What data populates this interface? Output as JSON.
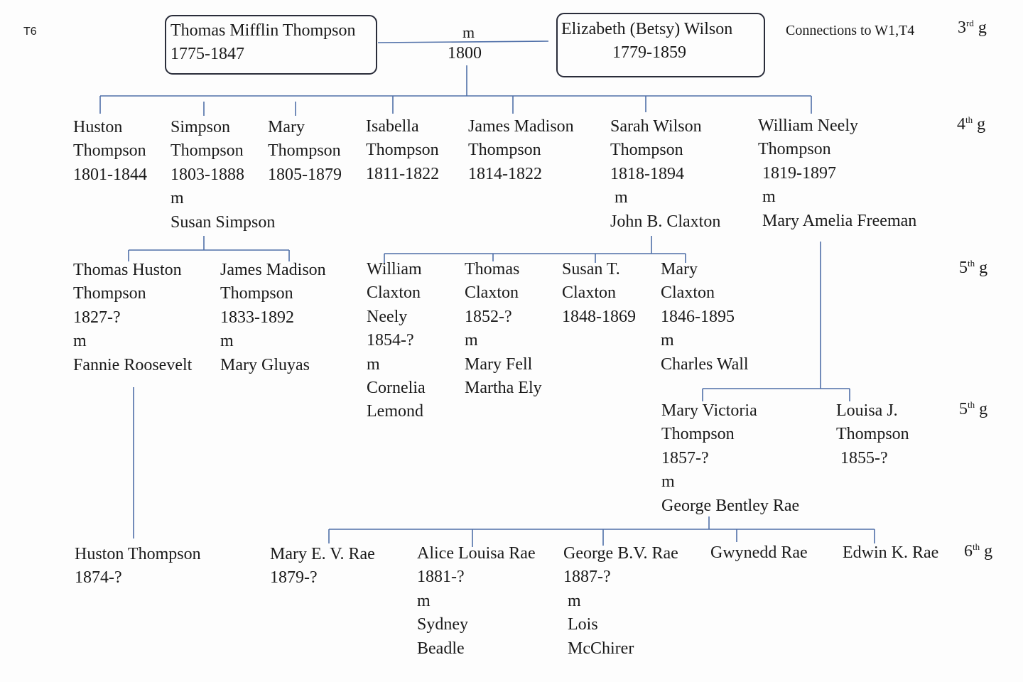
{
  "page_label": "T6",
  "connections_note": "Connections to W1,T4",
  "generations": [
    {
      "num": "3",
      "suffix": "rd",
      "g": "g"
    },
    {
      "num": "4",
      "suffix": "th",
      "g": "g"
    },
    {
      "num": "5",
      "suffix": "th",
      "g": "g"
    },
    {
      "num": "5",
      "suffix": "th",
      "g": "g"
    },
    {
      "num": "6",
      "suffix": "th",
      "g": "g"
    }
  ],
  "root": {
    "husband": {
      "name": "Thomas Mifflin Thompson",
      "dates": "1775-1847"
    },
    "marriage": {
      "m": "m",
      "year": "1800"
    },
    "wife": {
      "name": "Elizabeth (Betsy) Wilson",
      "dates": "1779-1859"
    }
  },
  "people": {
    "huston_t": "Huston\nThompson\n1801-1844",
    "simpson_t": "Simpson\nThompson\n1803-1888\nm\nSusan Simpson",
    "mary_t": "Mary\nThompson\n1805-1879",
    "isabella_t": "Isabella\nThompson\n1811-1822",
    "james_madison_t": "James Madison\nThompson\n1814-1822",
    "sarah_wilson_t": "Sarah Wilson\nThompson\n1818-1894\n m\nJohn B. Claxton",
    "william_neely_t": "William Neely\nThompson\n 1819-1897\n m\n Mary Amelia Freeman",
    "thomas_huston_t": "Thomas Huston\nThompson\n1827-?\nm\nFannie Roosevelt",
    "james_madison_t2": "James Madison\nThompson\n1833-1892\nm\nMary Gluyas",
    "william_claxton": "William\nClaxton\nNeely\n1854-?\nm\nCornelia\nLemond",
    "thomas_claxton": "Thomas\nClaxton\n1852-?\nm\nMary Fell\nMartha Ely",
    "susan_claxton": "Susan T.\nClaxton\n1848-1869",
    "mary_claxton": "Mary\nClaxton\n1846-1895\nm\nCharles Wall",
    "mary_victoria": "Mary Victoria\nThompson\n1857-?\nm\nGeorge Bentley Rae",
    "louisa_j": "Louisa J.\nThompson\n 1855-?",
    "huston_t2": "Huston Thompson\n1874-?",
    "mary_rae": "Mary E. V. Rae\n1879-?",
    "alice_rae": "Alice Louisa Rae\n1881-?\nm\nSydney\nBeadle",
    "george_rae": "George B.V. Rae\n1887-?\n m\n Lois\n McChirer",
    "gwynedd_rae": "Gwynedd Rae",
    "edwin_rae": "Edwin K. Rae"
  }
}
